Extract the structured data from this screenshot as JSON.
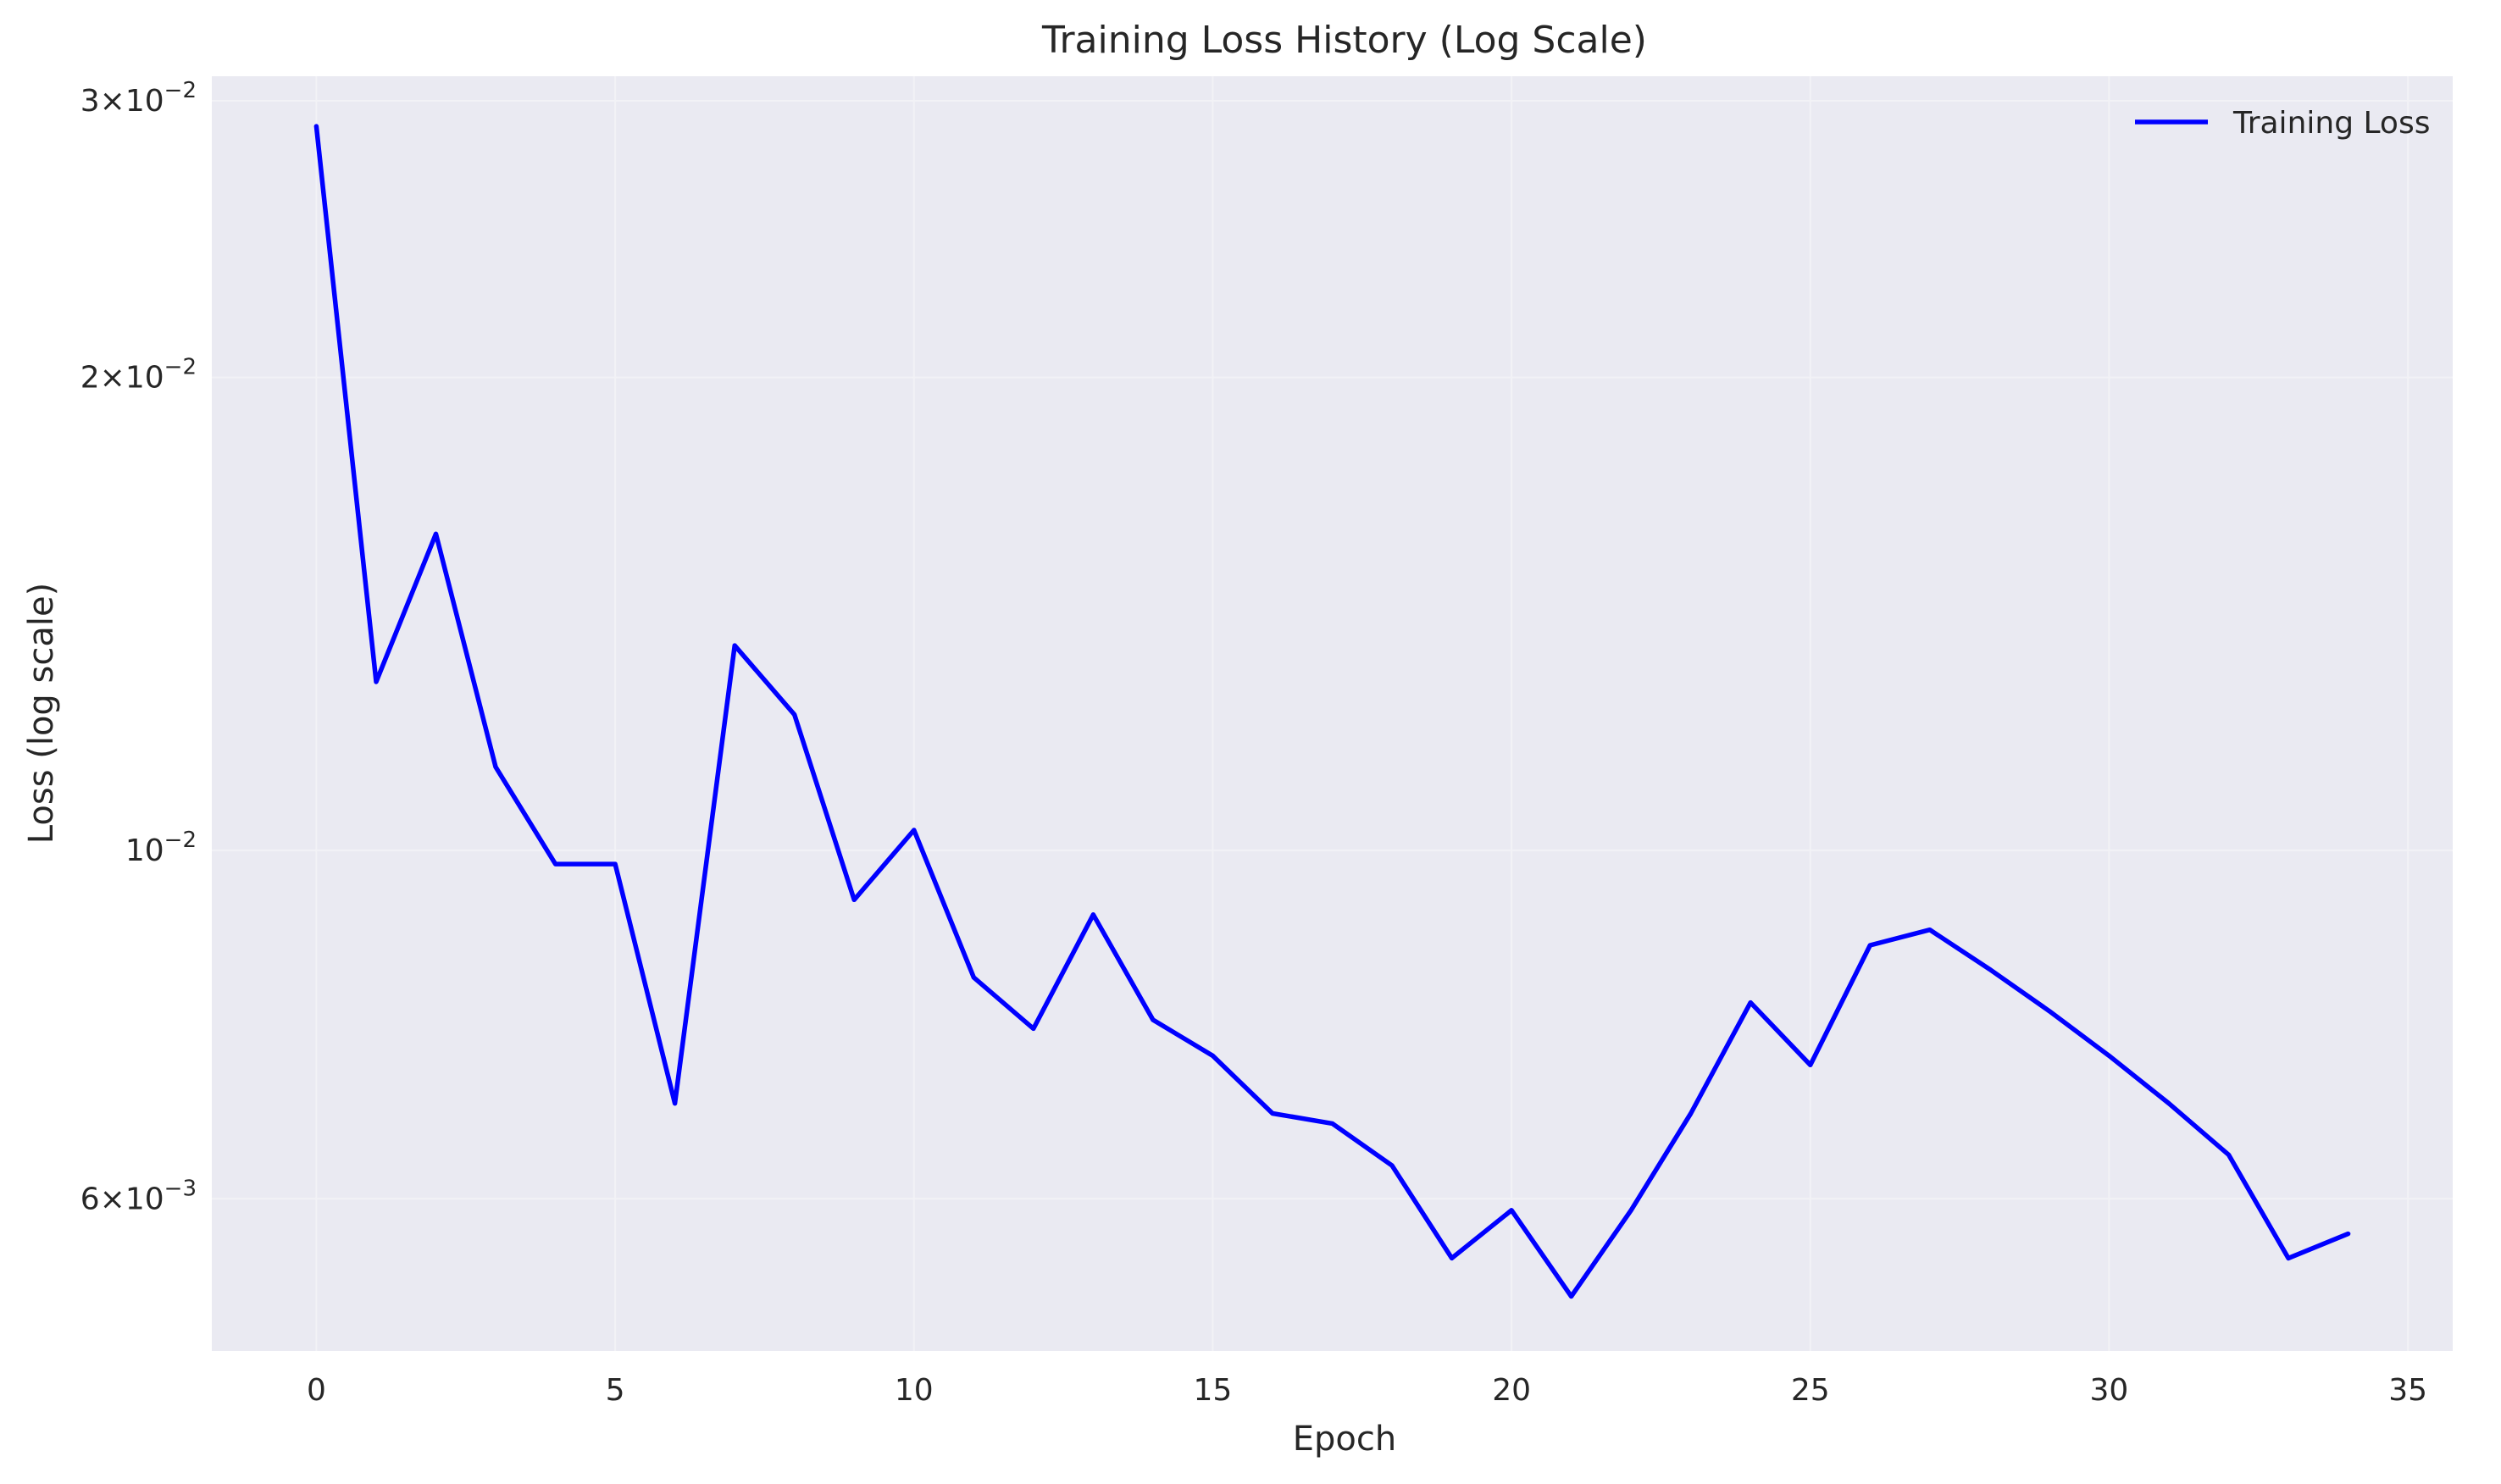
{
  "chart_data": {
    "type": "line",
    "title": "Training Loss History (Log Scale)",
    "xlabel": "Epoch",
    "ylabel": "Loss (log scale)",
    "yscale": "log",
    "xlim": [
      -1.75,
      35.75
    ],
    "ylim": [
      0.0048,
      0.0311
    ],
    "grid": true,
    "legend_position": "top-right",
    "x_ticks": [
      0,
      5,
      10,
      15,
      20,
      25,
      30,
      35
    ],
    "x_tick_labels": [
      "0",
      "5",
      "10",
      "15",
      "20",
      "25",
      "30",
      "35"
    ],
    "y_ticks": [
      {
        "value": 0.03,
        "label": "3×10⁻²",
        "mant": "3×10",
        "exp": "−2"
      },
      {
        "value": 0.02,
        "label": "2×10⁻²",
        "mant": "2×10",
        "exp": "−2"
      },
      {
        "value": 0.01,
        "label": "10⁻²",
        "mant": "10",
        "exp": "−2"
      },
      {
        "value": 0.006,
        "label": "6×10⁻³",
        "mant": "6×10",
        "exp": "−3"
      }
    ],
    "series": [
      {
        "name": "Training Loss",
        "color": "#0000ff",
        "x": [
          0,
          1,
          2,
          3,
          4,
          5,
          6,
          7,
          8,
          9,
          10,
          11,
          12,
          13,
          14,
          15,
          16,
          17,
          18,
          19,
          20,
          21,
          22,
          23,
          24,
          25,
          26,
          27,
          28,
          29,
          30,
          31,
          32,
          33,
          34
        ],
        "y": [
          0.0289,
          0.0128,
          0.0159,
          0.0113,
          0.0098,
          0.0098,
          0.0069,
          0.0135,
          0.0122,
          0.0093,
          0.0103,
          0.0083,
          0.0077,
          0.0091,
          0.0078,
          0.0074,
          0.0068,
          0.0067,
          0.0063,
          0.0055,
          0.0059,
          0.0052,
          0.0059,
          0.0068,
          0.008,
          0.0073,
          0.0087,
          0.0089,
          0.0084,
          0.0079,
          0.0074,
          0.0069,
          0.0064,
          0.0055,
          0.0057
        ]
      }
    ]
  }
}
